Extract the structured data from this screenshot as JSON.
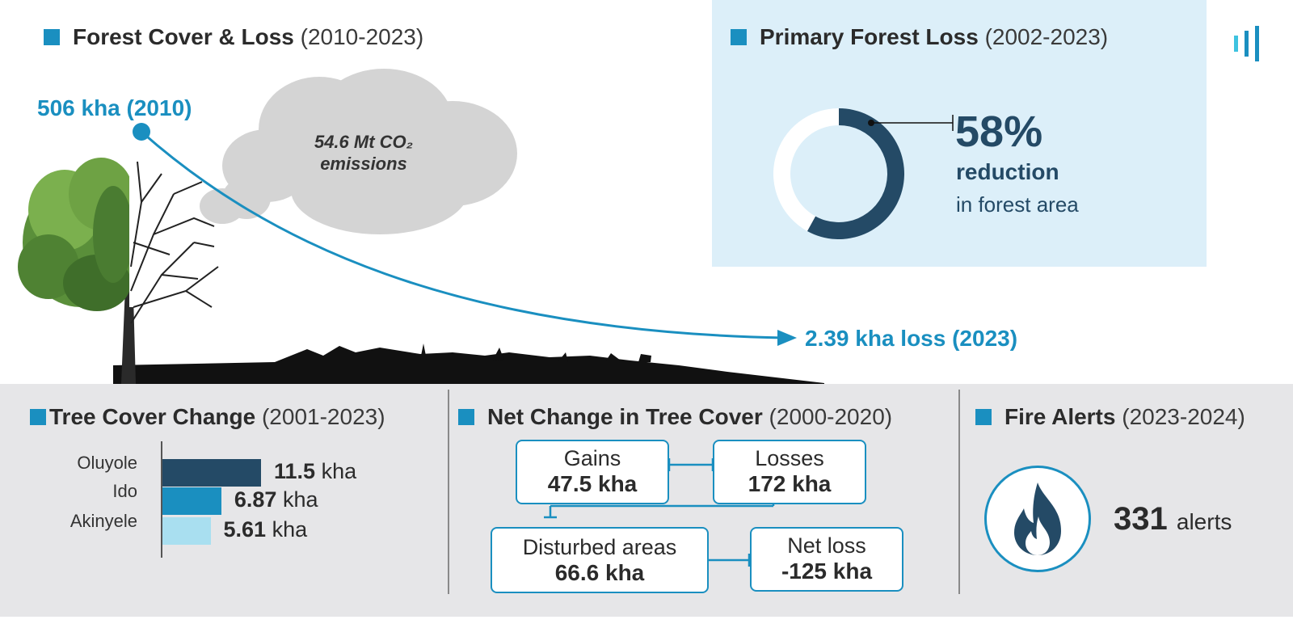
{
  "header": {
    "brand_icon": "bar-signal-icon",
    "accent_color": "#1a8fc0",
    "dark_color": "#244a66"
  },
  "forest_cover": {
    "title": "Forest Cover & Loss",
    "period": "(2010-2023)",
    "start_label": "506 kha (2010)",
    "end_label": "2.39 kha loss (2023)",
    "cloud_line1": "54.6 Mt CO₂",
    "cloud_line2": "emissions"
  },
  "primary_forest": {
    "title": "Primary Forest Loss",
    "period": "(2002-2023)",
    "percent": "58%",
    "line2": "reduction",
    "line3": "in forest area"
  },
  "tree_cover_change": {
    "title": "Tree Cover Change",
    "period": "(2001-2023)",
    "unit": "kha"
  },
  "net_change": {
    "title": "Net Change in Tree Cover",
    "period": "(2000-2020)",
    "gains_label": "Gains",
    "gains_value": "47.5 kha",
    "losses_label": "Losses",
    "losses_value": "172 kha",
    "disturbed_label": "Disturbed areas",
    "disturbed_value": "66.6 kha",
    "netloss_label": "Net loss",
    "netloss_value": "-125 kha"
  },
  "fire_alerts": {
    "title": "Fire Alerts",
    "period": "(2023-2024)",
    "count": "331",
    "unit": "alerts",
    "icon": "flame-icon"
  },
  "chart_data": [
    {
      "type": "pie",
      "title": "Primary Forest Loss",
      "labels": [
        "reduction",
        ""
      ],
      "values": [
        58,
        42
      ],
      "colors": [
        "#244a66",
        "#ffffff"
      ]
    },
    {
      "type": "bar",
      "title": "Tree Cover Change",
      "categories": [
        "Oluyole",
        "Ido",
        "Akinyele"
      ],
      "values": [
        11.5,
        6.87,
        5.61
      ],
      "value_labels": [
        "11.5",
        "6.87",
        "5.61"
      ],
      "colors": [
        "#244a66",
        "#1a8fc0",
        "#a9dff0"
      ],
      "orientation": "horizontal"
    }
  ]
}
